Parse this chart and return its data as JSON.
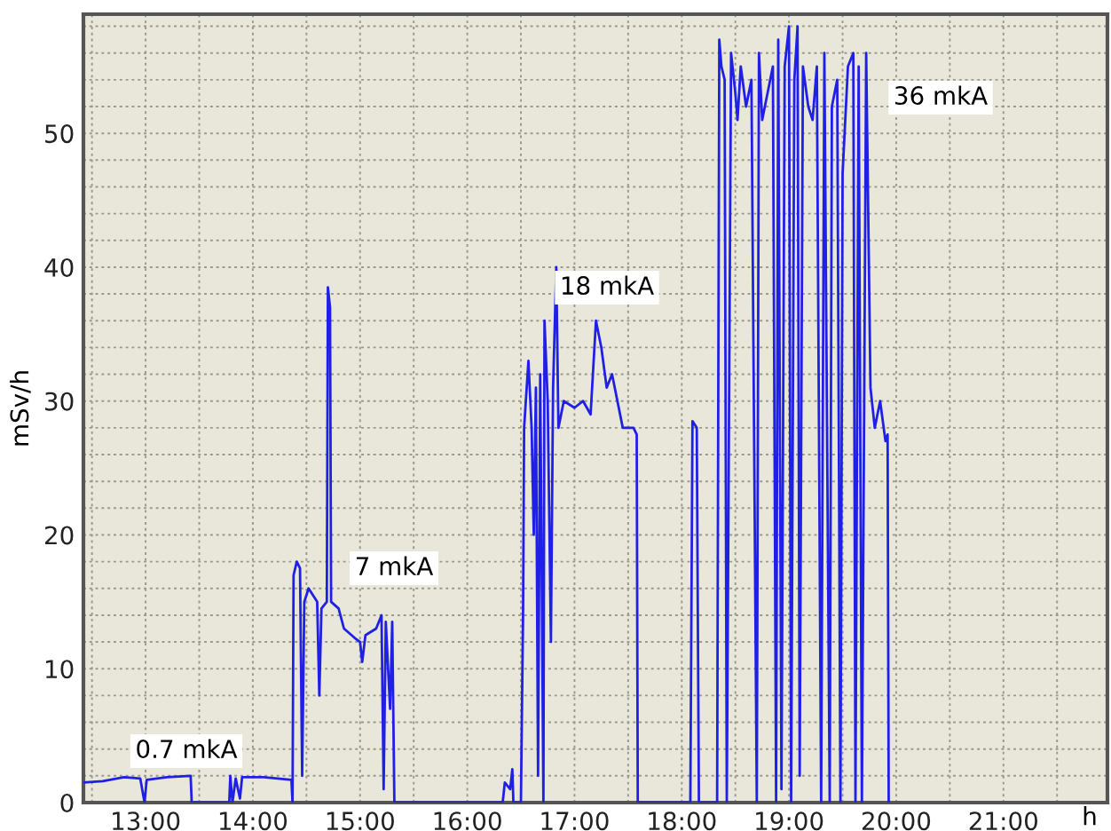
{
  "chart_data": {
    "type": "line",
    "xlabel": "h",
    "ylabel": "mSv/h",
    "xlim": [
      12.42,
      21.97
    ],
    "ylim": [
      0,
      58.9
    ],
    "xticks": [
      {
        "value": 12.5,
        "label": null
      },
      {
        "value": 13,
        "label": "13:00"
      },
      {
        "value": 13.5,
        "label": null
      },
      {
        "value": 14,
        "label": "14:00"
      },
      {
        "value": 14.5,
        "label": null
      },
      {
        "value": 15,
        "label": "15:00"
      },
      {
        "value": 15.5,
        "label": null
      },
      {
        "value": 16,
        "label": "16:00"
      },
      {
        "value": 16.5,
        "label": null
      },
      {
        "value": 17,
        "label": "17:00"
      },
      {
        "value": 17.5,
        "label": null
      },
      {
        "value": 18,
        "label": "18:00"
      },
      {
        "value": 18.5,
        "label": null
      },
      {
        "value": 19,
        "label": "19:00"
      },
      {
        "value": 19.5,
        "label": null
      },
      {
        "value": 20,
        "label": "20:00"
      },
      {
        "value": 20.5,
        "label": null
      },
      {
        "value": 21,
        "label": "21:00"
      },
      {
        "value": 21.5,
        "label": null
      }
    ],
    "yticks": [
      0,
      {
        "value": 2,
        "label": null
      },
      {
        "value": 4,
        "label": null
      },
      {
        "value": 6,
        "label": null
      },
      {
        "value": 8,
        "label": null
      },
      10,
      {
        "value": 12,
        "label": null
      },
      {
        "value": 14,
        "label": null
      },
      {
        "value": 16,
        "label": null
      },
      {
        "value": 18,
        "label": null
      },
      20,
      {
        "value": 22,
        "label": null
      },
      {
        "value": 24,
        "label": null
      },
      {
        "value": 26,
        "label": null
      },
      {
        "value": 28,
        "label": null
      },
      30,
      {
        "value": 32,
        "label": null
      },
      {
        "value": 34,
        "label": null
      },
      {
        "value": 36,
        "label": null
      },
      {
        "value": 38,
        "label": null
      },
      40,
      {
        "value": 42,
        "label": null
      },
      {
        "value": 44,
        "label": null
      },
      {
        "value": 46,
        "label": null
      },
      {
        "value": 48,
        "label": null
      },
      50,
      {
        "value": 52,
        "label": null
      },
      {
        "value": 54,
        "label": null
      },
      {
        "value": 56,
        "label": null
      },
      {
        "value": 58,
        "label": null
      }
    ],
    "grid": true,
    "marker": "none",
    "line_style": "solid",
    "annotations": [
      "0.7 mkA",
      "7 mkA",
      "18 mkA",
      "36 mkA"
    ],
    "series": [
      {
        "color": "#1f1fe6",
        "x": [
          12.42,
          12.6,
          12.8,
          12.95,
          12.99,
          13.01,
          13.2,
          13.42,
          13.43,
          13.78,
          13.79,
          13.81,
          13.84,
          13.88,
          13.9,
          13.93,
          14.1,
          14.36,
          14.37,
          14.38,
          14.41,
          14.44,
          14.46,
          14.48,
          14.52,
          14.6,
          14.62,
          14.64,
          14.69,
          14.7,
          14.72,
          14.73,
          14.8,
          14.85,
          14.95,
          15.0,
          15.02,
          15.05,
          15.15,
          15.2,
          15.22,
          15.24,
          15.28,
          15.3,
          15.32,
          16.33,
          16.35,
          16.4,
          16.42,
          16.43,
          16.5,
          16.52,
          16.53,
          16.57,
          16.6,
          16.62,
          16.64,
          16.66,
          16.68,
          16.71,
          16.72,
          16.75,
          16.78,
          16.8,
          16.83,
          16.85,
          16.9,
          17.0,
          17.08,
          17.15,
          17.2,
          17.25,
          17.3,
          17.35,
          17.45,
          17.55,
          17.58,
          17.59,
          18.08,
          18.1,
          18.14,
          18.16,
          18.2,
          18.33,
          18.35,
          18.37,
          18.4,
          18.42,
          18.46,
          18.5,
          18.52,
          18.55,
          18.6,
          18.65,
          18.7,
          18.72,
          18.75,
          18.8,
          18.85,
          18.88,
          18.9,
          18.93,
          18.96,
          19.0,
          19.02,
          19.05,
          19.08,
          19.1,
          19.13,
          19.18,
          19.22,
          19.26,
          19.3,
          19.33,
          19.38,
          19.4,
          19.45,
          19.48,
          19.5,
          19.55,
          19.6,
          19.62,
          19.65,
          19.68,
          19.72,
          19.76,
          19.8,
          19.85,
          19.9,
          19.92,
          19.93
        ],
        "values": [
          1.5,
          1.6,
          1.9,
          1.8,
          0,
          1.7,
          1.9,
          2.0,
          0,
          0,
          2.0,
          0,
          1.8,
          0.3,
          1.9,
          1.9,
          1.9,
          1.7,
          0,
          17,
          18,
          17.5,
          2,
          15,
          16,
          15,
          8,
          14.5,
          15,
          38.5,
          37,
          15,
          14.5,
          13,
          12.3,
          12,
          10.5,
          12.5,
          13,
          14,
          1,
          13.5,
          7,
          13.5,
          0,
          0,
          1.5,
          1.0,
          2.5,
          0,
          0,
          14,
          28,
          33,
          28,
          20,
          31,
          2,
          32,
          0,
          36,
          30,
          12,
          31,
          40,
          28,
          30,
          29.5,
          30,
          29,
          36,
          34,
          31,
          32,
          28,
          28,
          27.5,
          0,
          0,
          28.5,
          28,
          0,
          0,
          0,
          57,
          55,
          54,
          0,
          56,
          53,
          51,
          55,
          52,
          54,
          0,
          56,
          51,
          53,
          55,
          0,
          57,
          1,
          55,
          58,
          0,
          54,
          58,
          2,
          55,
          52,
          51,
          55,
          0,
          56,
          0,
          52,
          54,
          0,
          47,
          55,
          56,
          0,
          55,
          0,
          56,
          31,
          28,
          30,
          27,
          27.5,
          0
        ]
      }
    ]
  }
}
